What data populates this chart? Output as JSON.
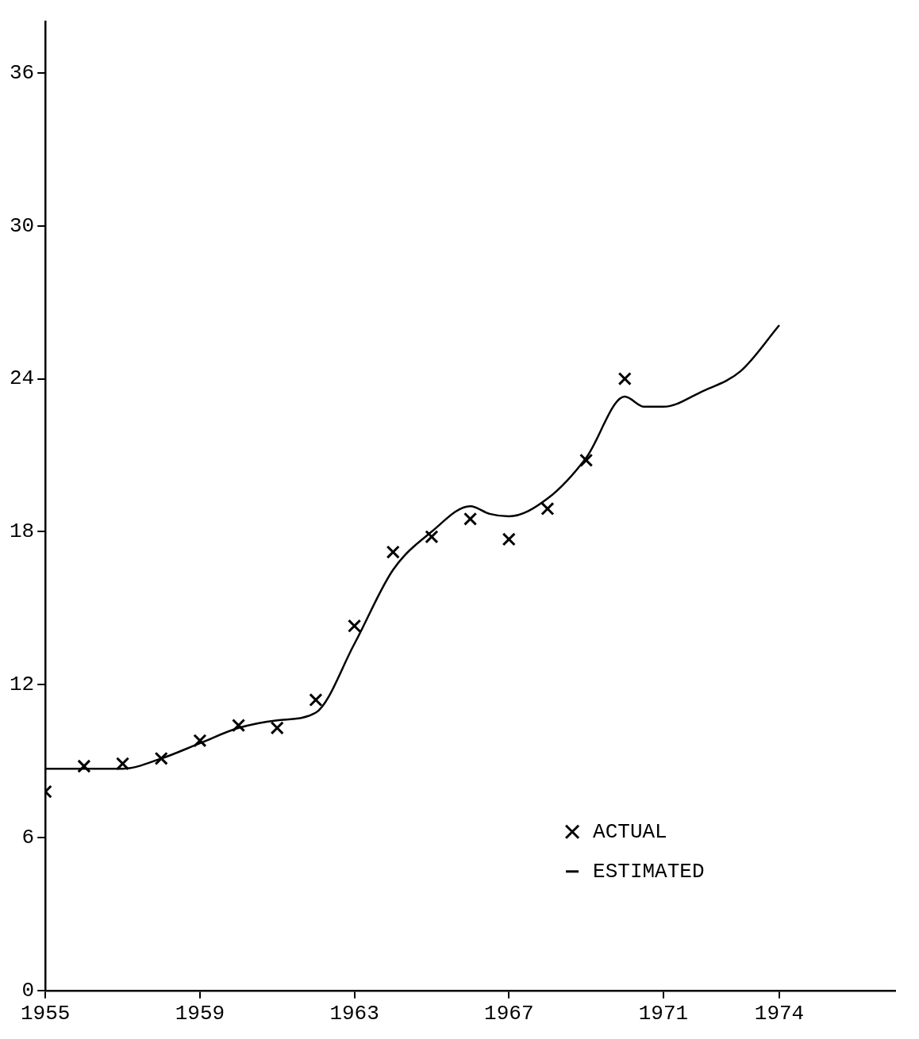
{
  "chart_data": {
    "type": "line",
    "x": [
      1955,
      1956,
      1957,
      1958,
      1959,
      1960,
      1961,
      1962,
      1963,
      1964,
      1965,
      1966,
      1967,
      1968,
      1969,
      1970
    ],
    "series": [
      {
        "name": "ACTUAL",
        "type": "scatter",
        "marker": "cross",
        "color": "#000000",
        "values": [
          7.8,
          8.8,
          8.9,
          9.1,
          9.8,
          10.4,
          10.3,
          11.4,
          14.3,
          17.2,
          17.8,
          18.5,
          17.7,
          18.9,
          20.8,
          24.0
        ]
      },
      {
        "name": "ESTIMATED",
        "type": "line",
        "marker": "none",
        "line_style": "solid",
        "color": "#000000",
        "x": [
          1955,
          1956,
          1957,
          1958,
          1959,
          1960,
          1961,
          1962,
          1963,
          1964,
          1965,
          1966,
          1966.5,
          1967,
          1968,
          1969,
          1970,
          1970.5,
          1971,
          1972,
          1973,
          1974
        ],
        "values": [
          8.7,
          8.7,
          8.7,
          9.1,
          9.7,
          10.3,
          10.6,
          10.9,
          13.6,
          16.5,
          18.0,
          19.0,
          18.7,
          18.6,
          19.3,
          20.9,
          23.3,
          22.9,
          22.9,
          23.5,
          24.3,
          26.1
        ]
      }
    ],
    "xlim": [
      1955,
      1977
    ],
    "xticks": [
      1955,
      1959,
      1963,
      1967,
      1971,
      1974
    ],
    "ylim": [
      0,
      38
    ],
    "yticks": [
      0,
      6,
      12,
      18,
      24,
      30,
      36
    ],
    "grid": false,
    "legend": "bottom right"
  }
}
